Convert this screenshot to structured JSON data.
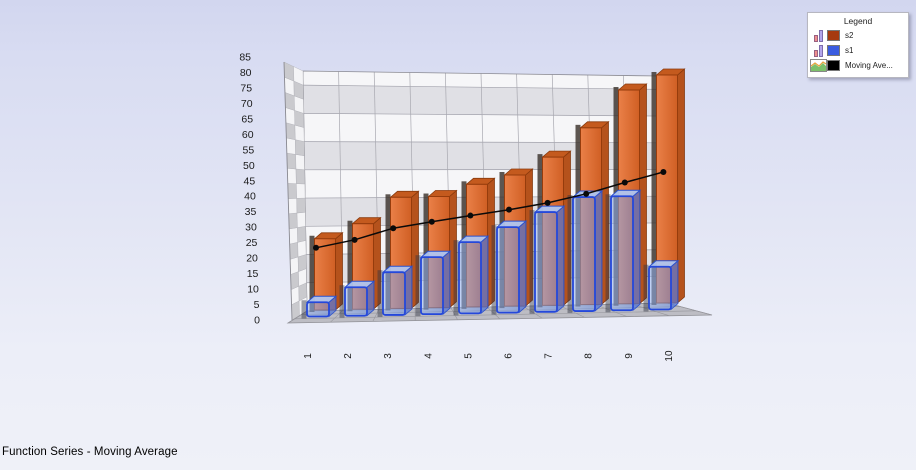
{
  "title": {
    "text": "Function Series - Moving Average"
  },
  "legend": {
    "title": "Legend",
    "items": [
      {
        "label": "s2",
        "swatch": "#a63a10",
        "icon": "bar"
      },
      {
        "label": "s1",
        "swatch": "#3a5ce0",
        "icon": "bar"
      },
      {
        "label": "Moving Ave...",
        "swatch": "#000000",
        "icon": "area"
      }
    ]
  },
  "chart_data": {
    "type": "bar",
    "projection": "3d",
    "title": "Function Series - Moving Average",
    "categories": [
      "1",
      "2",
      "3",
      "4",
      "5",
      "6",
      "7",
      "8",
      "9",
      "10"
    ],
    "series": [
      {
        "name": "s2",
        "type": "bar3d",
        "color": "#d96a33",
        "values": [
          25,
          30,
          39,
          39,
          43,
          46,
          52,
          62,
          75,
          80
        ]
      },
      {
        "name": "s1",
        "type": "bar3d",
        "color": "#7da0e6",
        "values": [
          5,
          10,
          15,
          20,
          25,
          30,
          35,
          40,
          40,
          15
        ]
      },
      {
        "name": "Moving Average",
        "type": "line",
        "color": "#000000",
        "values": [
          25,
          27.5,
          31.3,
          33.3,
          35.2,
          37,
          39.1,
          42,
          45.7,
          49.1
        ]
      }
    ],
    "ylim": [
      0,
      85
    ],
    "ytick_step": 5,
    "ytick_labels": [
      "85",
      "80",
      "75",
      "70",
      "65",
      "60",
      "55",
      "50",
      "45",
      "40",
      "35",
      "30",
      "25",
      "20",
      "15",
      "10",
      "5",
      "0"
    ],
    "grid": true,
    "legend_position": "top-right",
    "colors": {
      "s2_front": "#dd6f38",
      "s2_edge": "#963c0c",
      "s2_top": "#c45a1e",
      "s2_side": "#b5521c",
      "s1_front": "#82a5eb",
      "s1_edge": "#2548da",
      "s1_top": "#aec8f6",
      "ma_line": "#0a0a0a",
      "wall_band_light": "#f6f6f8",
      "wall_band_dark": "#e0e0e5",
      "floor": "#bdbdc4"
    }
  }
}
